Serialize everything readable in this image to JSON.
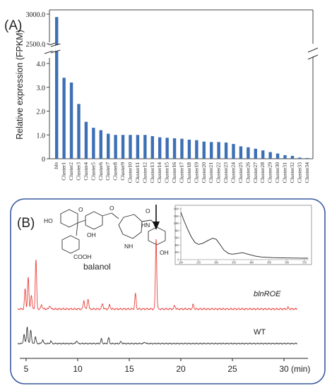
{
  "panel_a": {
    "label": "(A)"
  },
  "panel_b": {
    "label": "(B)",
    "compound_label": "balanol",
    "compound_groups": [
      "HO",
      "O",
      "OH",
      "COOH",
      "O",
      "O",
      "HN",
      "NH",
      "OH"
    ],
    "trace_labels": [
      "blnROE",
      "WT"
    ],
    "time_unit": "(min)",
    "accent": "#e8413c",
    "wt_color": "#333333",
    "frame_color": "#3a5aa0"
  },
  "chart_data": [
    {
      "type": "bar",
      "title": "",
      "xlabel": "",
      "ylabel": "Relative expression (FPKM)",
      "color": "#3d6fb5",
      "categories": [
        "bln",
        "Cluster1",
        "Cluster2",
        "Cluster3",
        "Cluster4",
        "Cluster5",
        "Cluster6",
        "Cluster7",
        "Cluster8",
        "Cluster9",
        "Cluster10",
        "Cluster11",
        "Cluster12",
        "Cluster13",
        "Cluster14",
        "Cluster15",
        "Cluster16",
        "Cluster17",
        "Cluster18",
        "Cluster19",
        "Cluster20",
        "Cluster21",
        "Cluster22",
        "Cluster23",
        "Cluster24",
        "Cluster25",
        "Cluster26",
        "Cluster27",
        "Cluster28",
        "Cluster29",
        "Cluster30",
        "Cluster31",
        "Cluster32",
        "Cluster33",
        "Cluster34"
      ],
      "values": [
        2950,
        3.4,
        3.2,
        2.3,
        1.55,
        1.3,
        1.2,
        1.05,
        1.0,
        1.0,
        1.0,
        1.0,
        1.0,
        0.95,
        0.9,
        0.88,
        0.86,
        0.84,
        0.8,
        0.78,
        0.72,
        0.7,
        0.7,
        0.68,
        0.62,
        0.52,
        0.48,
        0.42,
        0.35,
        0.28,
        0.22,
        0.15,
        0.12,
        0.05,
        0.03
      ],
      "broken_axis": {
        "lower_ticks": [
          0,
          1.0,
          2.0,
          3.0,
          4.0
        ],
        "upper_ticks": [
          2500.0,
          3000.0
        ]
      },
      "grid": false
    },
    {
      "type": "line",
      "title": "",
      "xlabel": "(min)",
      "xticks": [
        5,
        10,
        15,
        20,
        25,
        30
      ],
      "xlim": [
        4,
        32
      ],
      "series": [
        {
          "name": "blnROE",
          "color": "#e8413c",
          "peaks": [
            {
              "t": 4.9,
              "h": 0.28
            },
            {
              "t": 5.2,
              "h": 0.45
            },
            {
              "t": 5.5,
              "h": 0.2
            },
            {
              "t": 5.95,
              "h": 0.7
            },
            {
              "t": 6.5,
              "h": 0.06
            },
            {
              "t": 7.3,
              "h": 0.05
            },
            {
              "t": 10.6,
              "h": 0.12
            },
            {
              "t": 11.0,
              "h": 0.15
            },
            {
              "t": 12.4,
              "h": 0.08
            },
            {
              "t": 13.1,
              "h": 0.06
            },
            {
              "t": 15.6,
              "h": 0.22
            },
            {
              "t": 17.6,
              "h": 1.0
            },
            {
              "t": 19.4,
              "h": 0.05
            },
            {
              "t": 21.2,
              "h": 0.06
            },
            {
              "t": 30.4,
              "h": 0.02
            }
          ]
        },
        {
          "name": "WT",
          "color": "#333333",
          "peaks": [
            {
              "t": 4.8,
              "h": 0.18
            },
            {
              "t": 5.1,
              "h": 0.34
            },
            {
              "t": 5.45,
              "h": 0.28
            },
            {
              "t": 5.9,
              "h": 0.14
            },
            {
              "t": 6.6,
              "h": 0.08
            },
            {
              "t": 7.4,
              "h": 0.05
            },
            {
              "t": 9.9,
              "h": 0.06
            },
            {
              "t": 12.3,
              "h": 0.09
            },
            {
              "t": 13.0,
              "h": 0.12
            },
            {
              "t": 14.2,
              "h": 0.04
            },
            {
              "t": 16.5,
              "h": 0.03
            }
          ]
        }
      ]
    },
    {
      "type": "line",
      "title": "",
      "xlim": [
        200,
        560
      ],
      "ylim": [
        0,
        1400
      ],
      "xticks": [
        200,
        250,
        300,
        350,
        400,
        450,
        500,
        550
      ],
      "yticks": [
        0,
        200,
        400,
        600,
        800,
        1000,
        1200,
        1400
      ],
      "series": [
        {
          "name": "",
          "x": [
            200,
            210,
            220,
            230,
            240,
            250,
            262,
            275,
            290,
            300,
            310,
            322,
            335,
            345,
            360,
            375,
            390,
            410,
            430,
            460,
            500,
            540,
            560
          ],
          "y": [
            1300,
            1050,
            820,
            620,
            470,
            420,
            450,
            520,
            590,
            560,
            430,
            260,
            170,
            150,
            170,
            190,
            150,
            100,
            70,
            55,
            45,
            40,
            38
          ]
        }
      ]
    }
  ]
}
